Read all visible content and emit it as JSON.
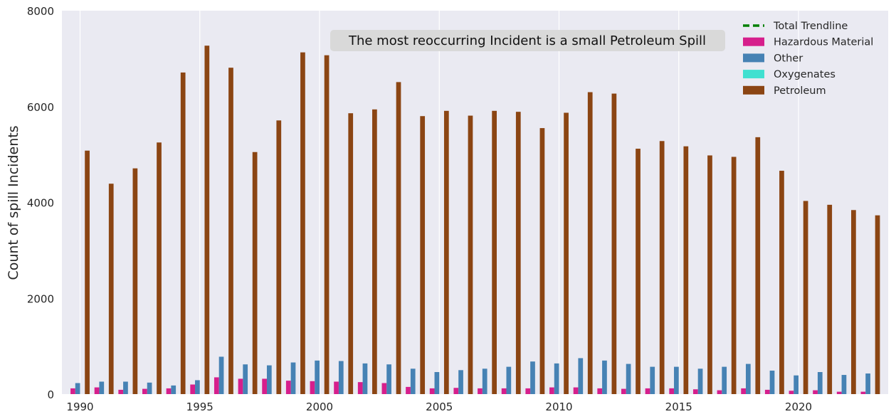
{
  "chart_data": {
    "type": "bar",
    "title": "",
    "xlabel": "",
    "ylabel": "Count of spill Incidents",
    "ylim": [
      0,
      8000
    ],
    "yticks": [
      0,
      2000,
      4000,
      6000,
      8000
    ],
    "xticks": [
      1990,
      1995,
      2000,
      2005,
      2010,
      2015,
      2020
    ],
    "grid": true,
    "legend_position": "top-right",
    "annotation": "The most reoccurring Incident is a small Petroleum Spill",
    "categories": [
      1990,
      1991,
      1992,
      1993,
      1994,
      1995,
      1996,
      1997,
      1998,
      1999,
      2000,
      2001,
      2002,
      2003,
      2004,
      2005,
      2006,
      2007,
      2008,
      2009,
      2010,
      2011,
      2012,
      2013,
      2014,
      2015,
      2016,
      2017,
      2018,
      2019,
      2020,
      2021,
      2022,
      2023
    ],
    "legend": [
      {
        "name": "Total Trendline",
        "color": "#008000",
        "style": "dashed"
      },
      {
        "name": "Hazardous Material",
        "color": "#d61f8c",
        "style": "bar"
      },
      {
        "name": "Other",
        "color": "#4682b4",
        "style": "bar"
      },
      {
        "name": "Oxygenates",
        "color": "#40e0d0",
        "style": "bar"
      },
      {
        "name": "Petroleum",
        "color": "#8b4513",
        "style": "bar"
      }
    ],
    "series": [
      {
        "name": "Hazardous Material",
        "color": "#d61f8c",
        "values": [
          120,
          140,
          90,
          110,
          120,
          200,
          350,
          320,
          320,
          280,
          270,
          260,
          250,
          230,
          150,
          120,
          130,
          120,
          120,
          120,
          140,
          140,
          120,
          110,
          120,
          120,
          100,
          80,
          120,
          90,
          70,
          80,
          50,
          50
        ]
      },
      {
        "name": "Other",
        "color": "#4682b4",
        "values": [
          230,
          260,
          260,
          240,
          180,
          290,
          780,
          620,
          600,
          660,
          700,
          690,
          640,
          620,
          530,
          460,
          500,
          530,
          570,
          680,
          640,
          750,
          700,
          630,
          570,
          570,
          530,
          570,
          630,
          490,
          390,
          460,
          400,
          430
        ]
      },
      {
        "name": "Oxygenates",
        "color": "#40e0d0",
        "values": [
          0,
          0,
          0,
          0,
          0,
          0,
          0,
          0,
          0,
          0,
          0,
          0,
          0,
          0,
          0,
          0,
          0,
          0,
          0,
          0,
          0,
          0,
          0,
          0,
          0,
          0,
          0,
          0,
          0,
          0,
          0,
          0,
          0,
          0
        ]
      },
      {
        "name": "Petroleum",
        "color": "#8b4513",
        "values": [
          5080,
          4390,
          4710,
          5250,
          6710,
          7270,
          6810,
          5050,
          5710,
          7130,
          7070,
          5860,
          5940,
          6510,
          5800,
          5910,
          5810,
          5910,
          5890,
          5550,
          5870,
          6300,
          6270,
          5120,
          5280,
          5170,
          4980,
          4950,
          5360,
          4660,
          4030,
          3950,
          3840,
          3730
        ]
      }
    ]
  }
}
